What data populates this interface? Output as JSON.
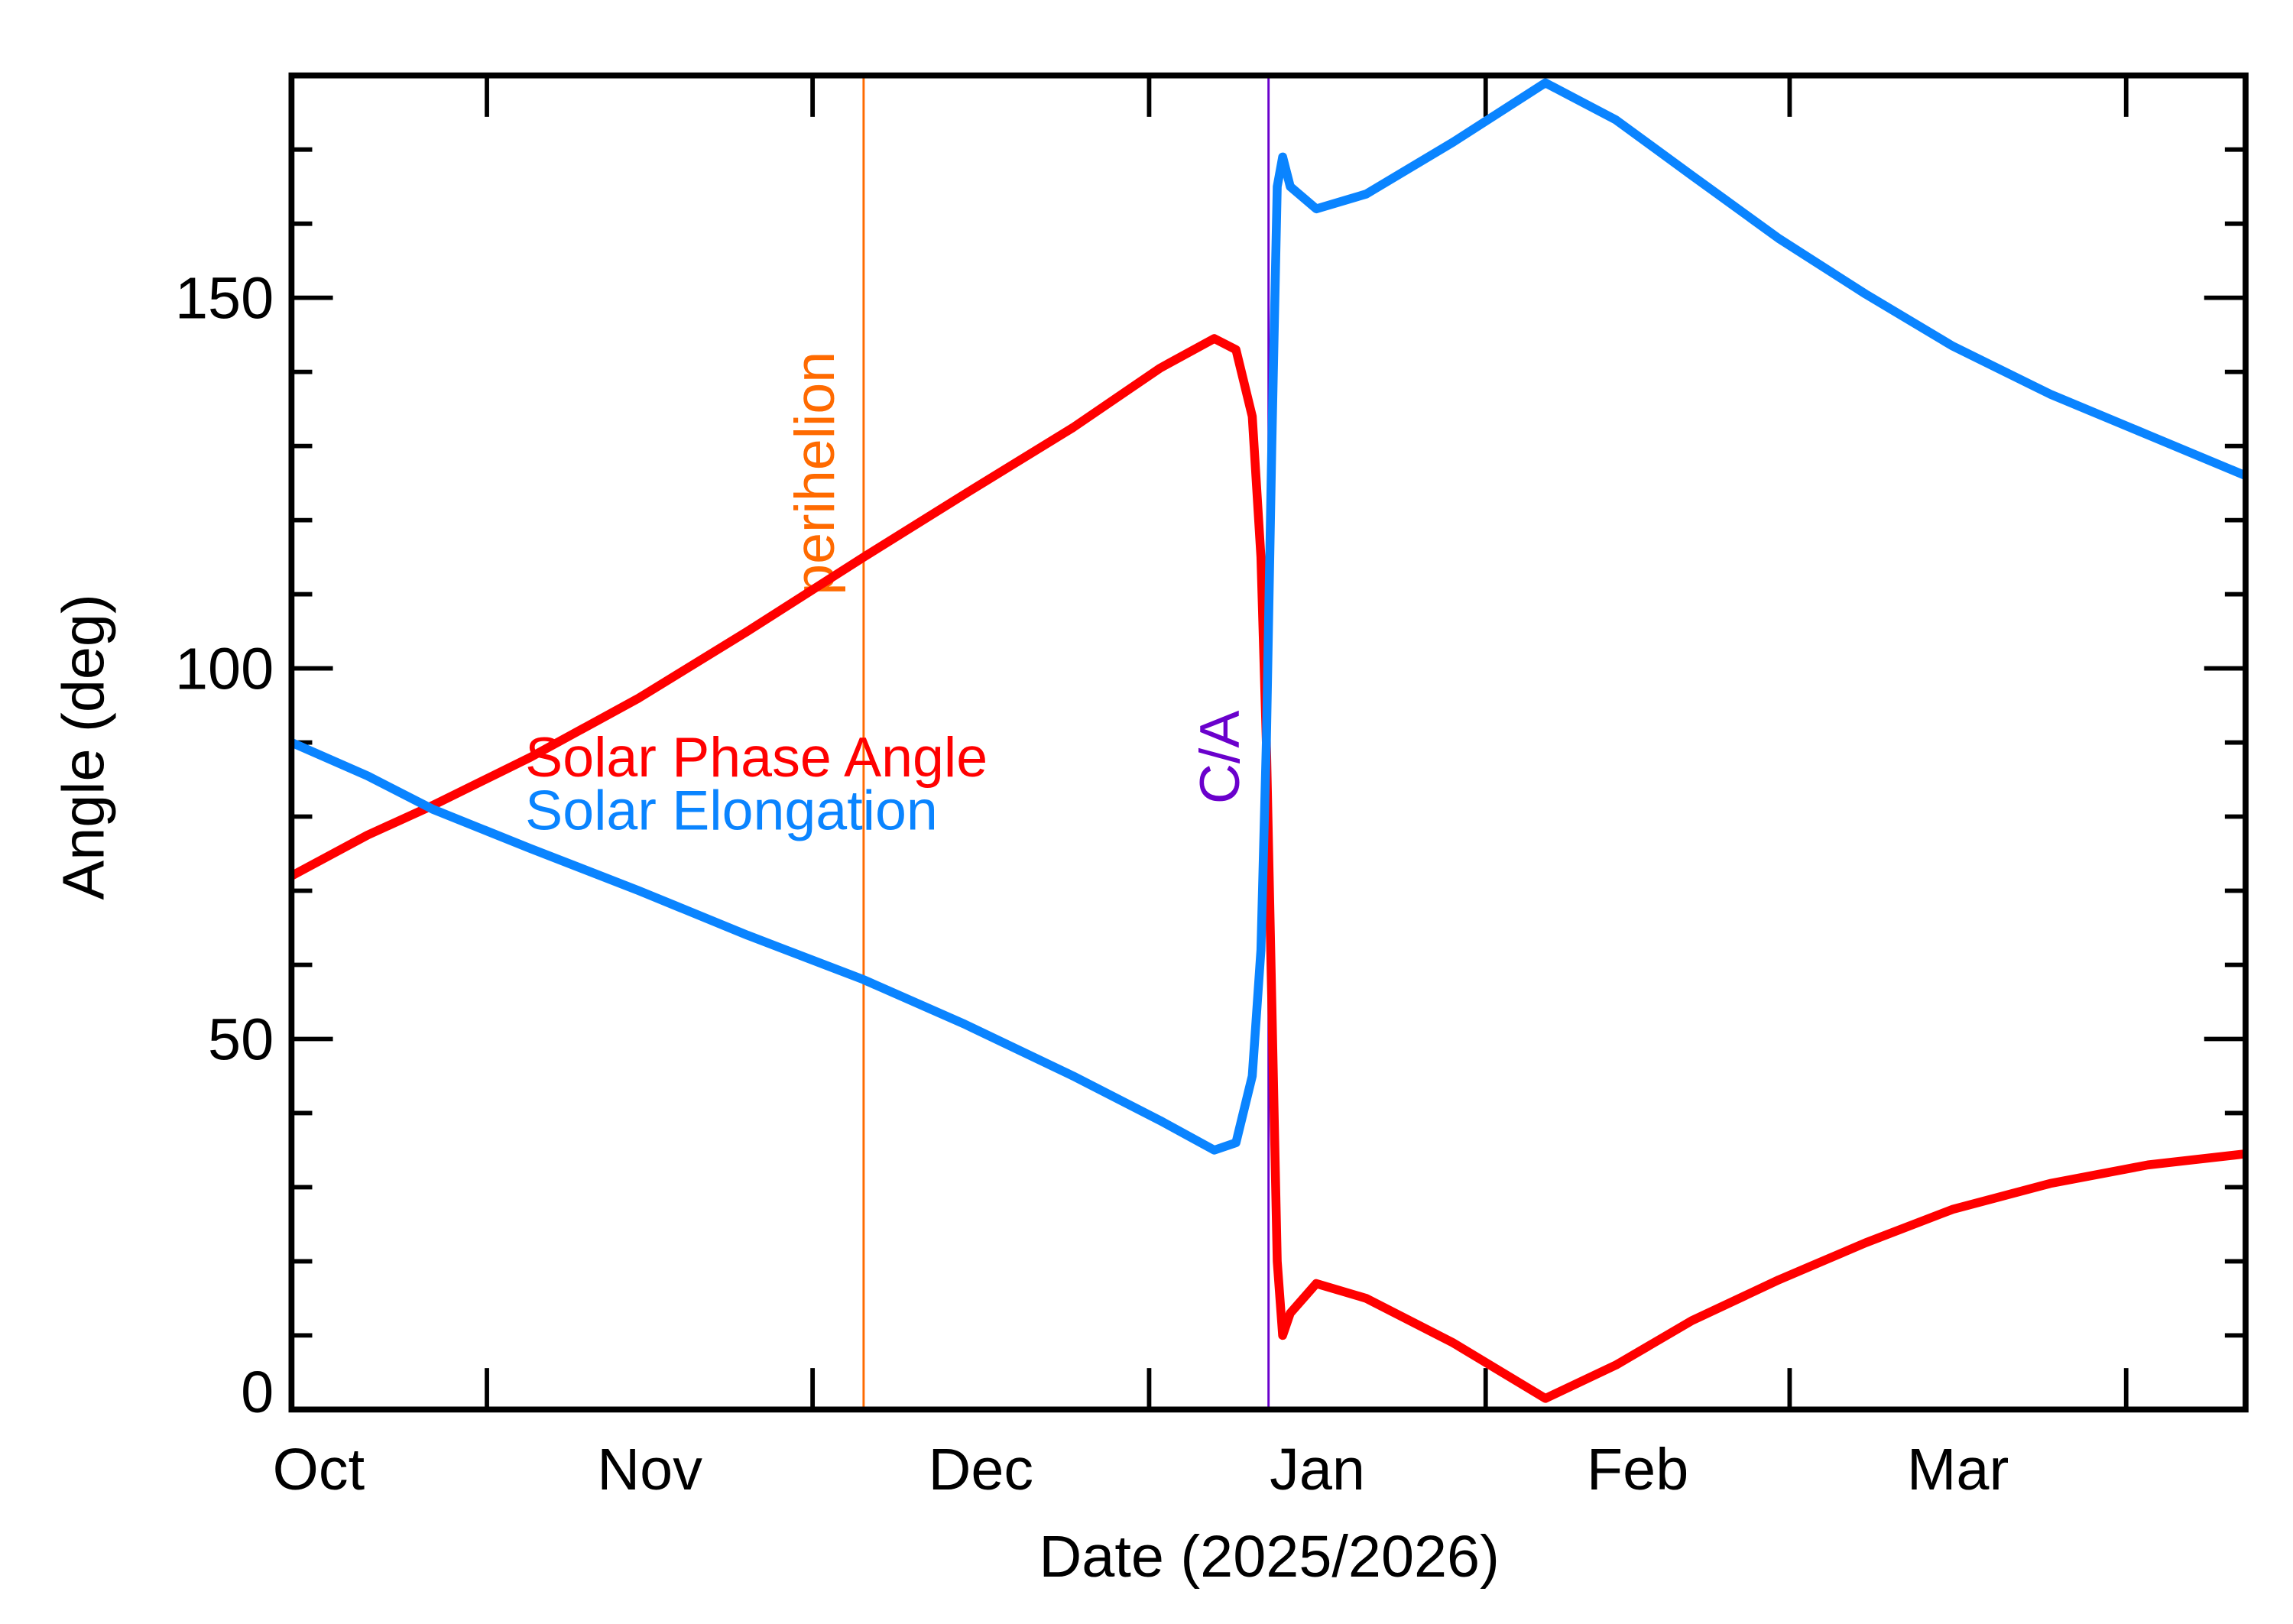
{
  "chart_data": {
    "type": "line",
    "xlabel": "Date (2025/2026)",
    "ylabel": "Angle (deg)",
    "x": [
      13,
      20,
      26,
      35,
      45,
      55,
      65.7,
      75,
      85,
      93,
      98,
      100,
      101.5,
      102.3,
      102.8,
      103.3,
      103.8,
      104.3,
      105,
      107.4,
      112,
      120,
      128.5,
      135,
      142,
      150,
      158,
      166,
      175,
      184,
      193
    ],
    "series": [
      {
        "name": "Solar Phase Angle",
        "color": "#ff0000",
        "values": [
          72,
          77.5,
          81.5,
          88,
          96,
          105,
          115,
          123.5,
          132.5,
          140.5,
          144.5,
          143,
          134,
          115,
          90,
          55,
          20,
          10,
          13,
          17,
          15,
          9,
          1.5,
          6,
          12,
          17.5,
          22.5,
          27,
          30.5,
          33,
          34.5
        ]
      },
      {
        "name": "Solar Elongation",
        "color": "#0a84ff",
        "values": [
          90,
          85.5,
          81,
          75.7,
          70,
          64,
          58,
          52,
          45,
          39,
          35,
          36,
          45,
          62,
          90,
          130,
          165,
          169,
          165,
          162,
          164,
          171,
          179,
          174,
          166.5,
          158,
          150.5,
          143.5,
          137,
          131.5,
          126
        ]
      }
    ],
    "vlines": [
      {
        "x": 65.7,
        "label": "perihelion",
        "color": "#ff6a00"
      },
      {
        "x": 103,
        "label": "C/A",
        "color": "#6a00cc"
      }
    ],
    "xlim": [
      13,
      193
    ],
    "xticks": [
      {
        "value": 15.5,
        "label": "Oct"
      },
      {
        "value": 46,
        "label": "Nov"
      },
      {
        "value": 76.5,
        "label": "Dec"
      },
      {
        "value": 107.5,
        "label": "Jan"
      },
      {
        "value": 137,
        "label": "Feb"
      },
      {
        "value": 166.5,
        "label": "Mar"
      }
    ],
    "xminorticks": [
      31,
      61,
      92,
      123,
      151,
      182
    ],
    "ylim": [
      0,
      180
    ],
    "yticks": [
      0,
      50,
      100,
      150
    ],
    "yminorticks": [
      10,
      20,
      30,
      40,
      60,
      70,
      80,
      90,
      110,
      120,
      130,
      140,
      160,
      170
    ]
  }
}
